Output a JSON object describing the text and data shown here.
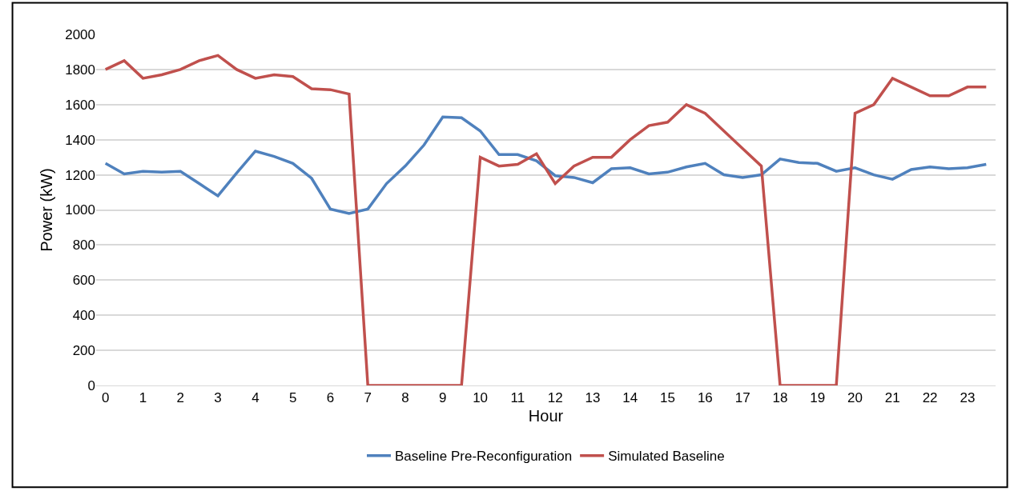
{
  "chart_data": {
    "type": "line",
    "xlabel": "Hour",
    "ylabel": "Power (kW)",
    "x": [
      0,
      0.5,
      1,
      1.5,
      2,
      2.5,
      3,
      3.5,
      4,
      4.5,
      5,
      5.5,
      6,
      6.5,
      7,
      7.5,
      8,
      8.5,
      9,
      9.5,
      10,
      10.5,
      11,
      11.5,
      12,
      12.5,
      13,
      13.5,
      14,
      14.5,
      15,
      15.5,
      16,
      16.5,
      17,
      17.5,
      18,
      18.5,
      19,
      19.5,
      20,
      20.5,
      21,
      21.5,
      22,
      22.5,
      23,
      23.5
    ],
    "series": [
      {
        "name": "Baseline Pre-Reconfiguration",
        "color": "#4f81bd",
        "values": [
          1265,
          1205,
          1220,
          1215,
          1220,
          1150,
          1080,
          1210,
          1335,
          1305,
          1265,
          1180,
          1005,
          980,
          1005,
          1150,
          1250,
          1370,
          1530,
          1525,
          1450,
          1315,
          1315,
          1280,
          1195,
          1185,
          1155,
          1235,
          1240,
          1205,
          1215,
          1245,
          1265,
          1200,
          1185,
          1200,
          1290,
          1270,
          1265,
          1220,
          1240,
          1200,
          1175,
          1230,
          1245,
          1235,
          1240,
          1260
        ]
      },
      {
        "name": "Simulated Baseline",
        "color": "#c0504d",
        "values": [
          1800,
          1850,
          1750,
          1770,
          1800,
          1850,
          1880,
          1800,
          1750,
          1770,
          1760,
          1690,
          1685,
          1660,
          0,
          0,
          0,
          0,
          0,
          0,
          1300,
          1250,
          1260,
          1320,
          1150,
          1250,
          1300,
          1300,
          1400,
          1480,
          1500,
          1600,
          1550,
          1450,
          1350,
          1250,
          0,
          0,
          0,
          0,
          1550,
          1600,
          1750,
          1700,
          1650,
          1650,
          1700,
          1700
        ]
      }
    ],
    "xlim": [
      -0.25,
      23.75
    ],
    "xticks": [
      0,
      1,
      2,
      3,
      4,
      5,
      6,
      7,
      8,
      9,
      10,
      11,
      12,
      13,
      14,
      15,
      16,
      17,
      18,
      19,
      20,
      21,
      22,
      23
    ],
    "ylim": [
      0,
      2000
    ],
    "yticks": [
      0,
      200,
      400,
      600,
      800,
      1000,
      1200,
      1400,
      1600,
      1800,
      2000
    ],
    "grid": "y",
    "legend": "bottom",
    "marker": "none",
    "line_style": "solid"
  }
}
